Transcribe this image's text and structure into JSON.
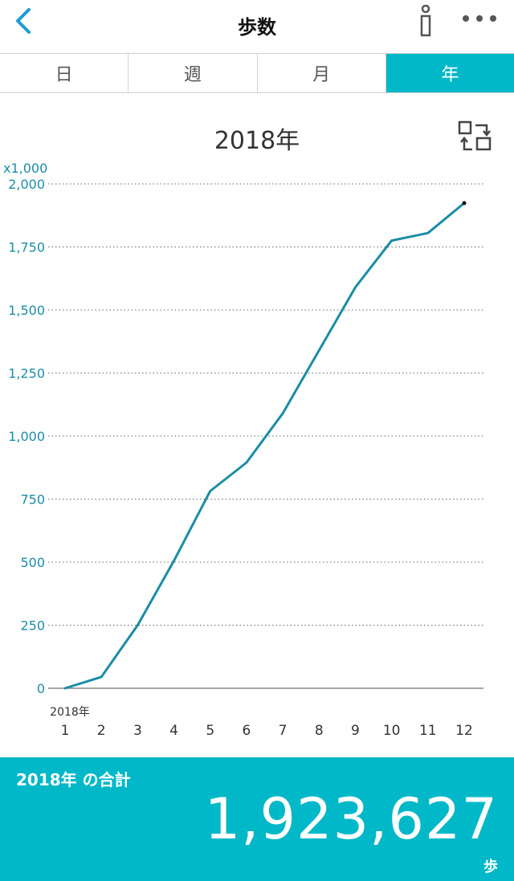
{
  "header": {
    "title": "歩数"
  },
  "tabs": [
    {
      "label": "日"
    },
    {
      "label": "週"
    },
    {
      "label": "月"
    },
    {
      "label": "年"
    }
  ],
  "chart_title": "2018年",
  "chart_data": {
    "type": "line",
    "unit_label": "x1,000",
    "x_first_label": "2018年",
    "x": [
      "1",
      "2",
      "3",
      "4",
      "5",
      "6",
      "7",
      "8",
      "9",
      "10",
      "11",
      "12"
    ],
    "values": [
      0,
      45,
      250,
      505,
      782,
      895,
      1090,
      1340,
      1590,
      1775,
      1805,
      1924
    ],
    "yticks": [
      "0",
      "250",
      "500",
      "750",
      "1,000",
      "1,250",
      "1,500",
      "1,750",
      "2,000"
    ],
    "ylim": [
      0,
      2000
    ],
    "grid": true,
    "line_color": "#1b8da6",
    "tick_color": "#1b8da6"
  },
  "summary": {
    "label": "2018年 の合計",
    "value": "1,923,627",
    "unit": "歩"
  },
  "colors": {
    "accent": "#00b8c8",
    "line": "#1b8da6",
    "back": "#1a9bd7"
  }
}
